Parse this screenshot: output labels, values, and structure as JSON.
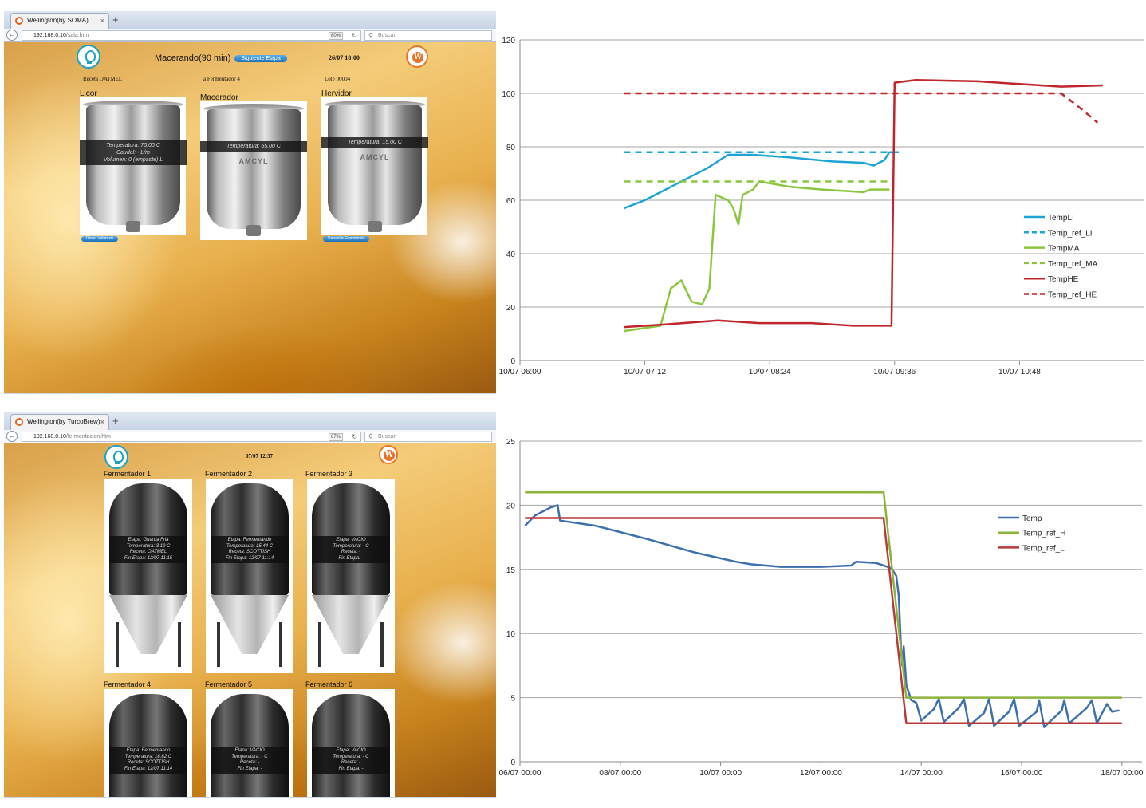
{
  "browser_top": {
    "tab_title": "Wellington(by SOMA)",
    "tab_close": "×",
    "new_tab": "+",
    "url_host": "192.168.0.10",
    "url_path": "/sala.htm",
    "zoom": "80%",
    "search_placeholder": "Buscar"
  },
  "sala": {
    "stage": "Macerando(90 min)",
    "next_stage_button": "Siguiente Etapa",
    "datetime": "26/07 18:00",
    "recipe": "Receta OATMEL",
    "target": "a Fermentador 4",
    "batch": "Lote 00004",
    "vessels": [
      {
        "title": "Licor",
        "lines": [
          "Temperatura: 70.00 C",
          "Caudal: - L/m",
          "Volumen: 0 (empaste) L"
        ],
        "maker": "",
        "button": "Reset Volumen"
      },
      {
        "title": "Macerador",
        "lines": [
          "Temperatura: 65.00 C"
        ],
        "maker": "AMCYL",
        "button": ""
      },
      {
        "title": "Hervidor",
        "lines": [
          "Temperatura: 15.00 C"
        ],
        "maker": "AMCYL",
        "button": "Cancelar Cocimiento"
      }
    ]
  },
  "browser_bottom": {
    "tab_title": "Wellington(by TurcoBrew)",
    "tab_close": "×",
    "new_tab": "+",
    "url_host": "192.168.0.10",
    "url_path": "/fermentacion.htm",
    "zoom": "67%",
    "search_placeholder": "Buscar"
  },
  "fermentacion": {
    "datetime": "07/07 12:37",
    "fermenters": [
      {
        "title": "Fermentador 1",
        "lines": [
          "Etapa: Guarda Fria",
          "Temperatura: 3.19 C",
          "Receta: OATMEL",
          "Fin Etapa: 12/07 11:15"
        ]
      },
      {
        "title": "Fermentador 2",
        "lines": [
          "Etapa: Fermentando",
          "Temperatura: 15.44 C",
          "Receta: SCOTTISH",
          "Fin Etapa: 12/07 11:14"
        ]
      },
      {
        "title": "Fermentador 3",
        "lines": [
          "Etapa: VACIO",
          "Temperatura: - C",
          "Receta: -",
          "Fin Etapa: -"
        ]
      },
      {
        "title": "Fermentador 4",
        "lines": [
          "Etapa: Fermentando",
          "Temperatura: 18.62 C",
          "Receta: SCOTTISH",
          "Fin Etapa: 12/07 11:14"
        ]
      },
      {
        "title": "Fermentador 5",
        "lines": [
          "Etapa: VACIO",
          "Temperatura: - C",
          "Receta: -",
          "Fin Etapa: -"
        ]
      },
      {
        "title": "Fermentador 6",
        "lines": [
          "Etapa: VACIO",
          "Temperatura: - C",
          "Receta: -",
          "Fin Etapa: -"
        ]
      }
    ]
  },
  "chart_data": [
    {
      "type": "line",
      "title": "",
      "xlabel": "",
      "ylabel": "",
      "x_ticks": [
        "10/07 06:00",
        "10/07 07:12",
        "10/07 08:24",
        "10/07 09:36",
        "10/07 10:48"
      ],
      "xlim_hours": [
        6.0,
        12.0
      ],
      "ylim": [
        0,
        120
      ],
      "y_ticks": [
        0,
        20,
        40,
        60,
        80,
        100,
        120
      ],
      "grid": "horizontal",
      "legend_position": "right",
      "series": [
        {
          "name": "TempLI",
          "color": "#1ea5d6",
          "dash": false,
          "points": [
            [
              7.0,
              57
            ],
            [
              7.2,
              60
            ],
            [
              7.4,
              64
            ],
            [
              7.6,
              68
            ],
            [
              7.8,
              72
            ],
            [
              8.0,
              77
            ],
            [
              8.24,
              77
            ],
            [
              8.6,
              76
            ],
            [
              9.0,
              74.5
            ],
            [
              9.3,
              74
            ],
            [
              9.4,
              73
            ],
            [
              9.5,
              75
            ],
            [
              9.55,
              78
            ],
            [
              9.64,
              78
            ]
          ]
        },
        {
          "name": "Temp_ref_LI",
          "color": "#1ea5d6",
          "dash": true,
          "points": [
            [
              7.0,
              78
            ],
            [
              9.64,
              78
            ]
          ]
        },
        {
          "name": "TempMA",
          "color": "#8cc63f",
          "dash": false,
          "points": [
            [
              7.0,
              11
            ],
            [
              7.35,
              13
            ],
            [
              7.45,
              27
            ],
            [
              7.55,
              30
            ],
            [
              7.65,
              22
            ],
            [
              7.75,
              21
            ],
            [
              7.82,
              27
            ],
            [
              7.88,
              62
            ],
            [
              8.0,
              60
            ],
            [
              8.05,
              57
            ],
            [
              8.1,
              51
            ],
            [
              8.14,
              62
            ],
            [
              8.24,
              64
            ],
            [
              8.3,
              67
            ],
            [
              8.6,
              65
            ],
            [
              8.9,
              64
            ],
            [
              9.3,
              63
            ],
            [
              9.37,
              64
            ],
            [
              9.55,
              64
            ]
          ]
        },
        {
          "name": "Temp_ref_MA",
          "color": "#8cc63f",
          "dash": true,
          "points": [
            [
              7.0,
              67
            ],
            [
              9.55,
              67
            ]
          ]
        },
        {
          "name": "TempHE",
          "color": "#c0252b",
          "dash": false,
          "points": [
            [
              7.0,
              12.5
            ],
            [
              7.4,
              13.5
            ],
            [
              7.9,
              15
            ],
            [
              8.3,
              14
            ],
            [
              8.8,
              14
            ],
            [
              9.2,
              13
            ],
            [
              9.57,
              13
            ],
            [
              9.6,
              104
            ],
            [
              9.8,
              105
            ],
            [
              10.4,
              104.5
            ],
            [
              10.8,
              103.5
            ],
            [
              11.2,
              102.5
            ],
            [
              11.6,
              103
            ]
          ]
        },
        {
          "name": "Temp_ref_HE",
          "color": "#c0252b",
          "dash": true,
          "points": [
            [
              7.0,
              100
            ],
            [
              11.2,
              100
            ],
            [
              11.4,
              94
            ],
            [
              11.55,
              89
            ]
          ]
        }
      ]
    },
    {
      "type": "line",
      "title": "",
      "xlabel": "",
      "ylabel": "",
      "x_ticks": [
        "06/07 00:00",
        "08/07 00:00",
        "10/07 00:00",
        "12/07 00:00",
        "14/07 00:00",
        "16/07 00:00",
        "18/07 00:00"
      ],
      "xlim_days": [
        6.0,
        18.0
      ],
      "ylim": [
        0,
        25
      ],
      "y_ticks": [
        0,
        5,
        10,
        15,
        20,
        25
      ],
      "grid": "horizontal",
      "legend_position": "right",
      "series": [
        {
          "name": "Temp",
          "color": "#3c6fae",
          "dash": false,
          "points": [
            [
              6.1,
              18.4
            ],
            [
              6.3,
              19.2
            ],
            [
              6.6,
              19.8
            ],
            [
              6.75,
              20.0
            ],
            [
              6.8,
              18.8
            ],
            [
              7.5,
              18.4
            ],
            [
              8.5,
              17.4
            ],
            [
              9.5,
              16.3
            ],
            [
              10.3,
              15.6
            ],
            [
              10.6,
              15.4
            ],
            [
              11.2,
              15.2
            ],
            [
              12.0,
              15.2
            ],
            [
              12.6,
              15.3
            ],
            [
              12.7,
              15.6
            ],
            [
              13.1,
              15.5
            ],
            [
              13.4,
              15.1
            ],
            [
              13.5,
              14.5
            ],
            [
              13.55,
              13.0
            ],
            [
              13.6,
              8.5
            ],
            [
              13.62,
              7.5
            ],
            [
              13.65,
              9.0
            ],
            [
              13.7,
              6.0
            ],
            [
              13.8,
              4.8
            ],
            [
              13.9,
              4.6
            ],
            [
              14.0,
              3.2
            ],
            [
              14.25,
              4.1
            ],
            [
              14.35,
              4.9
            ],
            [
              14.45,
              3.1
            ],
            [
              14.75,
              4.2
            ],
            [
              14.85,
              4.9
            ],
            [
              14.95,
              2.8
            ],
            [
              15.25,
              3.8
            ],
            [
              15.35,
              4.9
            ],
            [
              15.45,
              2.8
            ],
            [
              15.75,
              3.9
            ],
            [
              15.85,
              4.9
            ],
            [
              15.95,
              2.8
            ],
            [
              16.3,
              3.9
            ],
            [
              16.35,
              4.8
            ],
            [
              16.45,
              2.7
            ],
            [
              16.8,
              4.0
            ],
            [
              16.85,
              4.8
            ],
            [
              16.95,
              3.0
            ],
            [
              17.3,
              4.2
            ],
            [
              17.4,
              4.8
            ],
            [
              17.5,
              3.0
            ],
            [
              17.7,
              4.5
            ],
            [
              17.8,
              3.9
            ],
            [
              17.95,
              4.0
            ]
          ]
        },
        {
          "name": "Temp_ref_H",
          "color": "#8cb43c",
          "dash": false,
          "points": [
            [
              6.1,
              21
            ],
            [
              13.25,
              21
            ],
            [
              13.7,
              5
            ],
            [
              18.0,
              5
            ]
          ]
        },
        {
          "name": "Temp_ref_L",
          "color": "#b83a3a",
          "dash": false,
          "points": [
            [
              6.1,
              19
            ],
            [
              13.25,
              19
            ],
            [
              13.7,
              3
            ],
            [
              18.0,
              3
            ]
          ]
        }
      ]
    }
  ]
}
